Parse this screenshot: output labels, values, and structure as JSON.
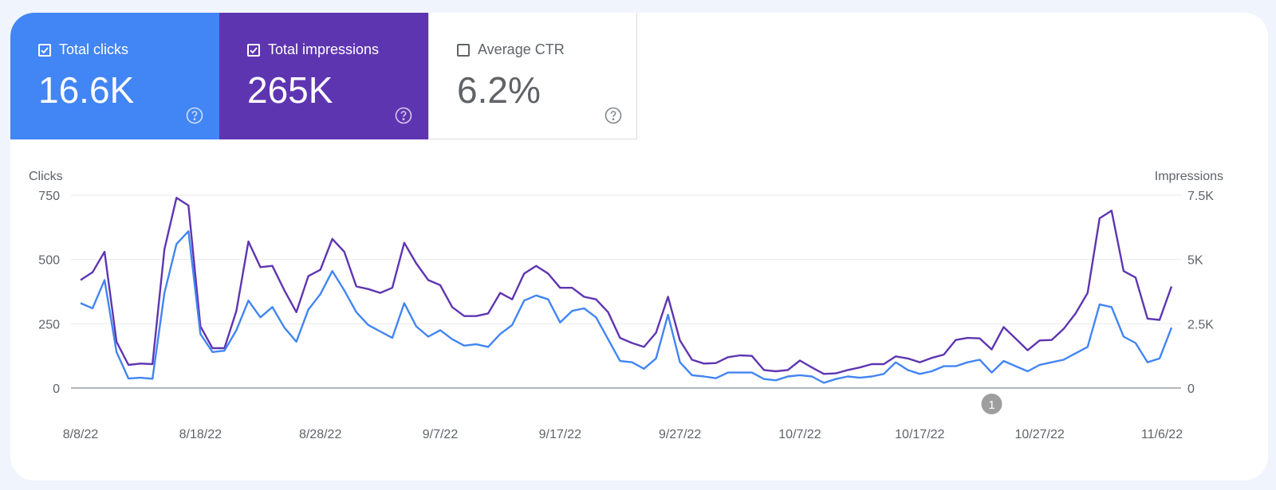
{
  "cards": [
    {
      "label": "Total clicks",
      "value": "16.6K",
      "checked": true
    },
    {
      "label": "Total impressions",
      "value": "265K",
      "checked": true
    },
    {
      "label": "Average CTR",
      "value": "6.2%",
      "checked": false
    }
  ],
  "colors": {
    "clicks": "#4285f4",
    "impressions": "#5e35b1",
    "grid": "#e8eaed",
    "baseline": "#9aa0a6",
    "text": "#5f6368"
  },
  "chart_data": {
    "type": "line",
    "left_axis_title": "Clicks",
    "right_axis_title": "Impressions",
    "left_ylim": [
      0,
      750
    ],
    "right_ylim": [
      0,
      7500
    ],
    "left_ticks": [
      "0",
      "250",
      "500",
      "750"
    ],
    "right_ticks": [
      "0",
      "2.5K",
      "5K",
      "7.5K"
    ],
    "x_labels": [
      "8/8/22",
      "8/18/22",
      "8/28/22",
      "9/7/22",
      "9/17/22",
      "9/27/22",
      "10/7/22",
      "10/17/22",
      "10/27/22",
      "11/6/22"
    ],
    "x_start_date": "8/8/22",
    "x_end_date": "11/6/22",
    "annotation": {
      "label": "1",
      "date_index": 76
    },
    "series": [
      {
        "name": "Total impressions",
        "axis": "right",
        "values": [
          4200,
          4500,
          5300,
          1800,
          900,
          950,
          930,
          5400,
          7400,
          7100,
          2400,
          1550,
          1550,
          3000,
          5700,
          4700,
          4750,
          3800,
          2950,
          4350,
          4600,
          5800,
          5300,
          3950,
          3850,
          3700,
          3900,
          5650,
          4850,
          4200,
          4000,
          3150,
          2800,
          2800,
          2900,
          3700,
          3450,
          4450,
          4750,
          4450,
          3900,
          3900,
          3550,
          3450,
          2950,
          1950,
          1750,
          1600,
          2150,
          3550,
          1850,
          1100,
          950,
          970,
          1200,
          1270,
          1250,
          700,
          650,
          700,
          1070,
          800,
          550,
          570,
          700,
          800,
          930,
          930,
          1230,
          1150,
          1000,
          1170,
          1300,
          1870,
          1950,
          1930,
          1500,
          2370,
          1920,
          1470,
          1850,
          1870,
          2300,
          2900,
          3700,
          6600,
          6900,
          4550,
          4300,
          2700,
          2650,
          3950
        ]
      },
      {
        "name": "Total clicks",
        "axis": "left",
        "values": [
          330,
          310,
          420,
          140,
          37,
          40,
          36,
          370,
          560,
          610,
          210,
          140,
          145,
          225,
          340,
          275,
          315,
          235,
          180,
          305,
          365,
          455,
          380,
          295,
          245,
          220,
          195,
          330,
          240,
          200,
          225,
          190,
          165,
          170,
          160,
          210,
          245,
          340,
          360,
          345,
          255,
          300,
          310,
          275,
          190,
          105,
          100,
          75,
          115,
          285,
          100,
          50,
          45,
          38,
          60,
          60,
          60,
          35,
          30,
          45,
          50,
          45,
          20,
          35,
          45,
          40,
          45,
          55,
          100,
          70,
          55,
          65,
          85,
          85,
          100,
          110,
          60,
          105,
          85,
          65,
          90,
          100,
          110,
          135,
          160,
          325,
          315,
          200,
          175,
          100,
          115,
          235
        ]
      }
    ]
  }
}
